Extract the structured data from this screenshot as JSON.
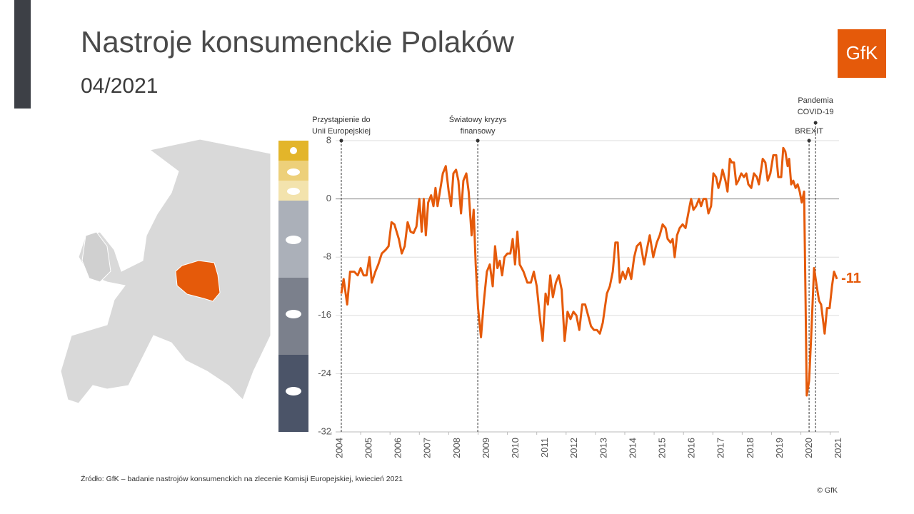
{
  "title": "Nastroje konsumenckie Polaków",
  "subtitle": "04/2021",
  "logo": "GfK",
  "source": "Źródło: GfK – badanie nastrojów konsumenckich na zlecenie Komisji Europejskiej, kwiecień 2021",
  "copyright": "© GfK",
  "chart_data": {
    "type": "line",
    "color": "#e55a0a",
    "xlim": [
      2004,
      2021.3
    ],
    "ylim": [
      -32,
      8
    ],
    "yticks": [
      8,
      0,
      -8,
      -16,
      -24,
      -32
    ],
    "xticks": [
      2004,
      2005,
      2006,
      2007,
      2008,
      2009,
      2010,
      2011,
      2012,
      2013,
      2014,
      2015,
      2016,
      2017,
      2018,
      2019,
      2020,
      2021
    ],
    "grid": true,
    "annotations": [
      {
        "text": [
          "Przystąpienie do",
          "Unii Europejskiej"
        ],
        "x": 2004.34
      },
      {
        "text": [
          "Światowy kryzys",
          "finansowy"
        ],
        "x": 2008.99
      },
      {
        "text": [
          "BREXIT"
        ],
        "x": 2020.28
      },
      {
        "text": [
          "Pandemia",
          "COVID-19"
        ],
        "x": 2020.5
      }
    ],
    "x": [
      2004.34,
      2004.42,
      2004.54,
      2004.64,
      2004.78,
      2004.9,
      2005.0,
      2005.1,
      2005.2,
      2005.3,
      2005.38,
      2005.5,
      2005.6,
      2005.72,
      2005.85,
      2005.95,
      2006.05,
      2006.15,
      2006.3,
      2006.4,
      2006.5,
      2006.6,
      2006.7,
      2006.8,
      2006.9,
      2007.0,
      2007.08,
      2007.15,
      2007.22,
      2007.3,
      2007.4,
      2007.48,
      2007.55,
      2007.62,
      2007.7,
      2007.8,
      2007.9,
      2008.0,
      2008.08,
      2008.16,
      2008.25,
      2008.33,
      2008.42,
      2008.5,
      2008.6,
      2008.68,
      2008.78,
      2008.85,
      2008.92,
      2009.0,
      2009.1,
      2009.2,
      2009.3,
      2009.4,
      2009.5,
      2009.58,
      2009.66,
      2009.74,
      2009.82,
      2009.9,
      2010.0,
      2010.1,
      2010.18,
      2010.26,
      2010.34,
      2010.42,
      2010.55,
      2010.68,
      2010.8,
      2010.9,
      2011.0,
      2011.1,
      2011.2,
      2011.3,
      2011.38,
      2011.46,
      2011.55,
      2011.65,
      2011.75,
      2011.85,
      2011.95,
      2012.05,
      2012.15,
      2012.25,
      2012.35,
      2012.45,
      2012.55,
      2012.65,
      2012.75,
      2012.85,
      2012.95,
      2013.05,
      2013.15,
      2013.25,
      2013.32,
      2013.39,
      2013.49,
      2013.59,
      2013.68,
      2013.76,
      2013.83,
      2013.93,
      2014.02,
      2014.12,
      2014.22,
      2014.32,
      2014.41,
      2014.53,
      2014.66,
      2014.75,
      2014.85,
      2014.97,
      2015.09,
      2015.19,
      2015.29,
      2015.39,
      2015.46,
      2015.56,
      2015.63,
      2015.7,
      2015.78,
      2015.87,
      2015.97,
      2016.07,
      2016.21,
      2016.26,
      2016.34,
      2016.43,
      2016.53,
      2016.6,
      2016.68,
      2016.77,
      2016.85,
      2016.94,
      2017.02,
      2017.11,
      2017.19,
      2017.26,
      2017.33,
      2017.43,
      2017.5,
      2017.58,
      2017.65,
      2017.72,
      2017.8,
      2017.87,
      2017.97,
      2018.06,
      2018.14,
      2018.21,
      2018.31,
      2018.4,
      2018.5,
      2018.57,
      2018.7,
      2018.79,
      2018.87,
      2018.96,
      2019.06,
      2019.16,
      2019.23,
      2019.33,
      2019.4,
      2019.47,
      2019.55,
      2019.6,
      2019.67,
      2019.74,
      2019.82,
      2019.89,
      2019.96,
      2020.03,
      2020.11,
      2020.16,
      2020.2,
      2020.28,
      2020.35,
      2020.45,
      2020.54,
      2020.62,
      2020.69,
      2020.81,
      2020.89,
      2020.98,
      2021.06,
      2021.13,
      2021.23
    ],
    "values": [
      -13,
      -11,
      -14.5,
      -10,
      -10,
      -10.5,
      -9.5,
      -10.5,
      -10.5,
      -8,
      -11.5,
      -10,
      -9,
      -7.5,
      -7,
      -6.5,
      -3.2,
      -3.5,
      -5.5,
      -7.5,
      -6.5,
      -3.2,
      -4.5,
      -4.7,
      -3.8,
      0,
      -4.5,
      0,
      -5,
      -0.5,
      0.5,
      -1,
      1.5,
      -1,
      1,
      3.5,
      4.5,
      1,
      -1,
      3.5,
      4,
      2.5,
      -2,
      2.5,
      3.5,
      1,
      -5,
      -1.5,
      -9,
      -15,
      -19,
      -14,
      -10,
      -9,
      -12,
      -6.5,
      -9.5,
      -8.5,
      -10.5,
      -8,
      -7.5,
      -7.5,
      -5.5,
      -9,
      -4.5,
      -9,
      -10,
      -11.5,
      -11.5,
      -10,
      -12,
      -16,
      -19.5,
      -13,
      -14.5,
      -10.5,
      -13.5,
      -11.5,
      -10.5,
      -12.5,
      -19.5,
      -15.5,
      -16.5,
      -15.5,
      -16,
      -18,
      -14.5,
      -14.5,
      -16,
      -17.5,
      -18,
      -18,
      -18.5,
      -17,
      -15,
      -13,
      -12,
      -10,
      -6,
      -6,
      -11.5,
      -10,
      -11,
      -9.5,
      -11,
      -8,
      -6.5,
      -6,
      -9,
      -7,
      -5,
      -8,
      -6,
      -5,
      -3.5,
      -4,
      -5.5,
      -6,
      -5.5,
      -8,
      -5,
      -4,
      -3.5,
      -4,
      -1,
      0,
      -1.5,
      -1,
      0,
      -1,
      0,
      0,
      -2,
      -1,
      3.5,
      3,
      1.5,
      2.5,
      4,
      2.5,
      1,
      5.5,
      5,
      5,
      2,
      2.5,
      3.5,
      3,
      3.5,
      2,
      1.5,
      3.5,
      3,
      2,
      5.5,
      5,
      2.5,
      3.5,
      6,
      6,
      3,
      3,
      7,
      6.5,
      4.5,
      5.5,
      2,
      2.5,
      1.5,
      2,
      1,
      -0.5,
      1,
      -14,
      -27,
      -25,
      -19,
      -9.5,
      -12,
      -14,
      -14.5,
      -18.5,
      -15,
      -15,
      -12,
      -10,
      -11
    ]
  }
}
